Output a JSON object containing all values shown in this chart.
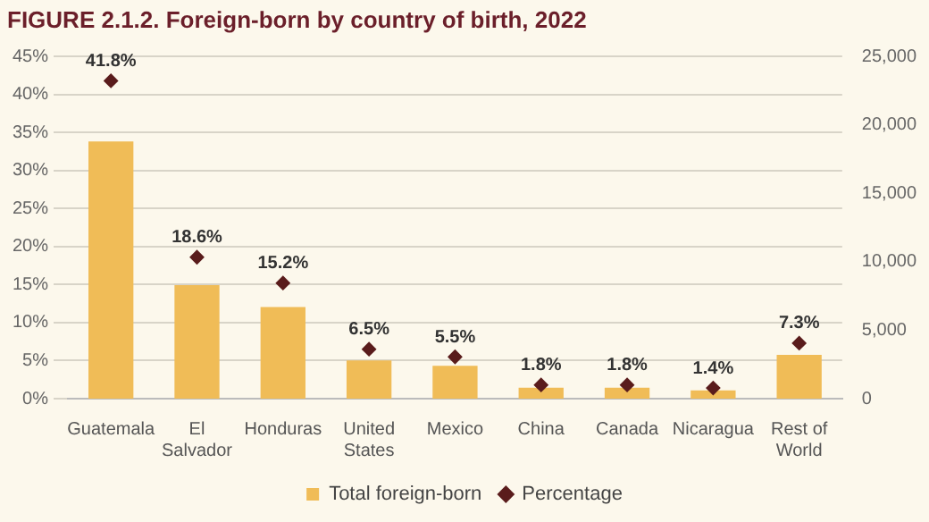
{
  "chart_data": {
    "type": "bar",
    "title": "FIGURE 2.1.2. Foreign-born by country of birth, 2022",
    "categories": [
      "Guatemala",
      "El Salvador",
      "Honduras",
      "United States",
      "Mexico",
      "China",
      "Canada",
      "Nicaragua",
      "Rest of World"
    ],
    "series": [
      {
        "name": "Total foreign-born",
        "axis": "y2",
        "color": "#f0bc57",
        "values": [
          18800,
          8300,
          6700,
          2800,
          2400,
          800,
          800,
          600,
          3200
        ]
      },
      {
        "name": "Percentage",
        "type": "scatter",
        "axis": "y",
        "color": "#5a1c1c",
        "marker": "diamond",
        "values": [
          41.8,
          18.6,
          15.2,
          6.5,
          5.5,
          1.8,
          1.8,
          1.4,
          7.3
        ],
        "value_labels": [
          "41.8%",
          "18.6%",
          "15.2%",
          "6.5%",
          "5.5%",
          "1.8%",
          "1.8%",
          "1.4%",
          "7.3%"
        ]
      }
    ],
    "ylim": [
      0,
      45
    ],
    "yticks": [
      {
        "value": 0,
        "label": "0%"
      },
      {
        "value": 5,
        "label": "5%"
      },
      {
        "value": 10,
        "label": "10%"
      },
      {
        "value": 15,
        "label": "15%"
      },
      {
        "value": 20,
        "label": "20%"
      },
      {
        "value": 25,
        "label": "25%"
      },
      {
        "value": 30,
        "label": "30%"
      },
      {
        "value": 35,
        "label": "35%"
      },
      {
        "value": 40,
        "label": "40%"
      },
      {
        "value": 45,
        "label": "45%"
      }
    ],
    "y2lim": [
      0,
      25000
    ],
    "y2ticks": [
      {
        "value": 0,
        "label": "0"
      },
      {
        "value": 5000,
        "label": "5,000"
      },
      {
        "value": 10000,
        "label": "10,000"
      },
      {
        "value": 15000,
        "label": "15,000"
      },
      {
        "value": 20000,
        "label": "20,000"
      },
      {
        "value": 25000,
        "label": "25,000"
      }
    ],
    "grid": "y",
    "legend": "bottom"
  }
}
